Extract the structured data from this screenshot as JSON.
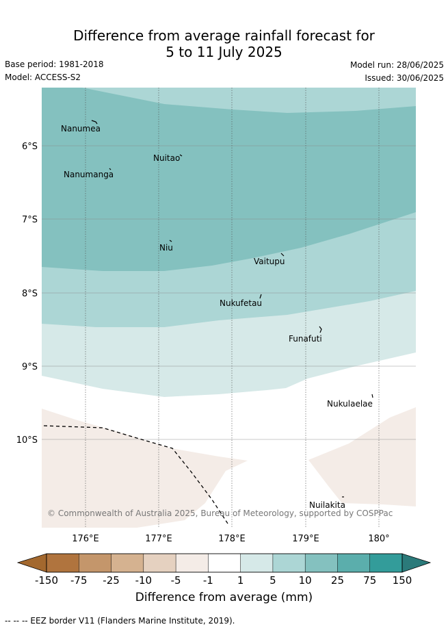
{
  "title": {
    "line1": "Difference from average rainfall forecast for",
    "line2": "5 to 11 July 2025"
  },
  "meta": {
    "base_period": "Base period: 1981-2018",
    "model": "Model: ACCESS-S2",
    "model_run": "Model run: 28/06/2025",
    "issued": "Issued: 30/06/2025"
  },
  "map": {
    "latitude_labels": [
      "6°S",
      "7°S",
      "8°S",
      "9°S",
      "10°S"
    ],
    "longitude_labels": [
      "176°E",
      "177°E",
      "178°E",
      "179°E",
      "180°"
    ],
    "islands": [
      "Nanumea",
      "Nuitao",
      "Nanumanga",
      "Niu",
      "Vaitupu",
      "Nukufetau",
      "Funafuti",
      "Nukulaelae",
      "Nuilakita"
    ],
    "copyright": "© Commonwealth of Australia 2025, Bureau of Meteorology, supported by COSPPac",
    "colors": {
      "band_25_75": "#84c1bf",
      "band_10_25": "#acd6d5",
      "band_5_10": "#d6e9e8",
      "band_1_5": "#ffffff",
      "band_neg5_neg1": "#f4ece7"
    }
  },
  "colorbar": {
    "ticks": [
      "-150",
      "-75",
      "-25",
      "-10",
      "-5",
      "-1",
      "1",
      "5",
      "10",
      "25",
      "75",
      "150"
    ],
    "colors": [
      "#a3682e",
      "#b0743e",
      "#c4966b",
      "#d5b290",
      "#e5d1c0",
      "#f4ece7",
      "#ffffff",
      "#d6e9e8",
      "#acd6d5",
      "#84c1bf",
      "#5baeac",
      "#339c9a",
      "#2b7a7a"
    ],
    "label": "Difference from average (mm)"
  },
  "footnote": "--  --  -- EEZ border V11 (Flanders Marine Institute, 2019)."
}
